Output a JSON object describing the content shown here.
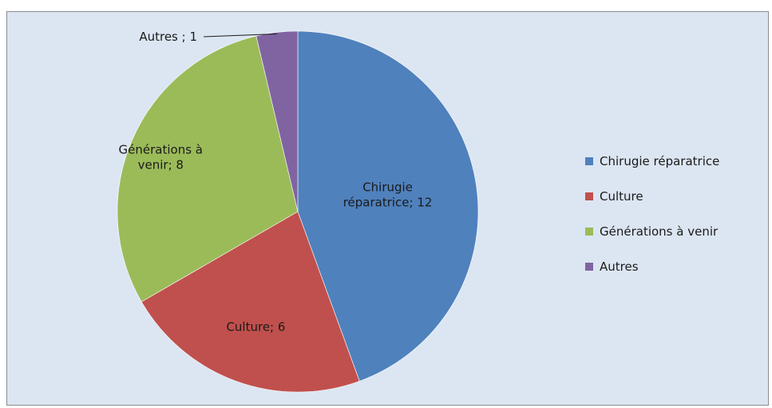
{
  "chart_data": {
    "type": "pie",
    "categories": [
      "Chirugie réparatrice",
      "Culture",
      "Générations à venir",
      "Autres"
    ],
    "values": [
      12,
      6,
      8,
      1
    ],
    "colors": [
      "#4f81bd",
      "#c0504d",
      "#9bbb59",
      "#8064a2"
    ],
    "data_labels": [
      [
        "Chirugie",
        "réparatrice; 12"
      ],
      [
        "Culture; 6"
      ],
      [
        "Générations à",
        "venir; 8"
      ],
      [
        "Autres ; 1"
      ]
    ],
    "start_angle": "12 o'clock",
    "direction": "clockwise",
    "legend": {
      "position": "right",
      "items": [
        "Chirugie réparatrice",
        "Culture",
        "Générations à venir",
        "Autres"
      ]
    },
    "background_color": "#dce6f2"
  }
}
